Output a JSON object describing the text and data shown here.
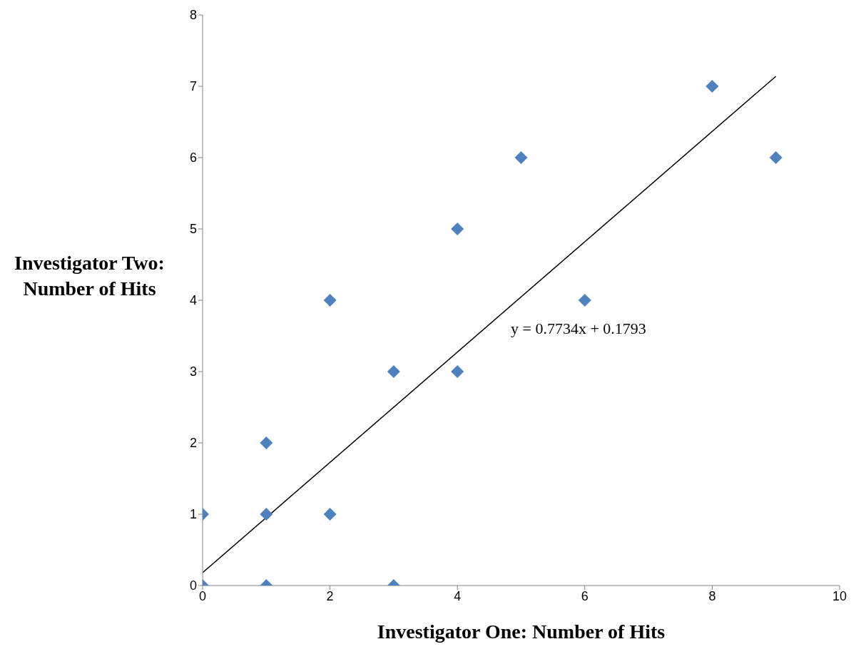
{
  "chart_data": {
    "type": "scatter",
    "xlabel": "Investigator One: Number of Hits",
    "ylabel": "Investigator Two: Number of Hits",
    "xlim": [
      0,
      10
    ],
    "xticks": [
      0,
      2,
      4,
      6,
      8,
      10
    ],
    "ylim": [
      0,
      8
    ],
    "yticks": [
      0,
      1,
      2,
      3,
      4,
      5,
      6,
      7,
      8
    ],
    "series": [
      {
        "color": "#4f81bd",
        "marker": "diamond",
        "x": [
          0,
          0,
          1,
          1,
          1,
          2,
          2,
          3,
          3,
          4,
          4,
          5,
          6,
          8,
          9
        ],
        "values": [
          0,
          1,
          0,
          1,
          2,
          1,
          4,
          0,
          3,
          3,
          5,
          6,
          4,
          7,
          6
        ]
      },
      {
        "type": "line",
        "marker": "none",
        "color": "#000000",
        "x": [
          0,
          9
        ],
        "values": [
          0.18,
          7.14
        ]
      }
    ],
    "annotations": [
      "y = 0.7734x + 0.1793"
    ]
  }
}
